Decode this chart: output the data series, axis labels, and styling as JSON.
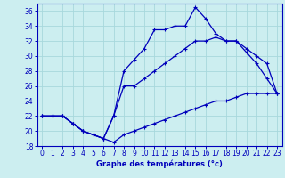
{
  "title": "Graphe des températures (°c)",
  "bg_color": "#cceef0",
  "grid_color": "#a8d8dc",
  "line_color": "#0000bb",
  "xlim": [
    -0.5,
    23.5
  ],
  "ylim": [
    18,
    37
  ],
  "xticks": [
    0,
    1,
    2,
    3,
    4,
    5,
    6,
    7,
    8,
    9,
    10,
    11,
    12,
    13,
    14,
    15,
    16,
    17,
    18,
    19,
    20,
    21,
    22,
    23
  ],
  "yticks": [
    18,
    20,
    22,
    24,
    26,
    28,
    30,
    32,
    34,
    36
  ],
  "line1_x": [
    0,
    1,
    2,
    3,
    4,
    5,
    6,
    7,
    8,
    9,
    10,
    11,
    12,
    13,
    14,
    15,
    16,
    17,
    18,
    19,
    20,
    21,
    22,
    23
  ],
  "line1_y": [
    22,
    22,
    22,
    21,
    20,
    19.5,
    19,
    18.5,
    19.5,
    20,
    20.5,
    21,
    21.5,
    22,
    22.5,
    23,
    23.5,
    24,
    24,
    24.5,
    25,
    25,
    25,
    25
  ],
  "line2_x": [
    0,
    1,
    2,
    3,
    4,
    5,
    6,
    7,
    8,
    9,
    10,
    11,
    12,
    13,
    14,
    15,
    16,
    17,
    18,
    19,
    20,
    21,
    22,
    23
  ],
  "line2_y": [
    22,
    22,
    22,
    21,
    20,
    19.5,
    19,
    22,
    28,
    29.5,
    31,
    33.5,
    33.5,
    34,
    34,
    36.5,
    35,
    33,
    32,
    32,
    30.5,
    29,
    27,
    25
  ],
  "line3_x": [
    0,
    1,
    2,
    3,
    4,
    5,
    6,
    7,
    8,
    9,
    10,
    11,
    12,
    13,
    14,
    15,
    16,
    17,
    18,
    19,
    20,
    21,
    22,
    23
  ],
  "line3_y": [
    22,
    22,
    22,
    21,
    20,
    19.5,
    19,
    22,
    26,
    26,
    27,
    28,
    29,
    30,
    31,
    32,
    32,
    32.5,
    32,
    32,
    31,
    30,
    29,
    25
  ],
  "xlabel_size": 6,
  "tick_size": 5.5
}
